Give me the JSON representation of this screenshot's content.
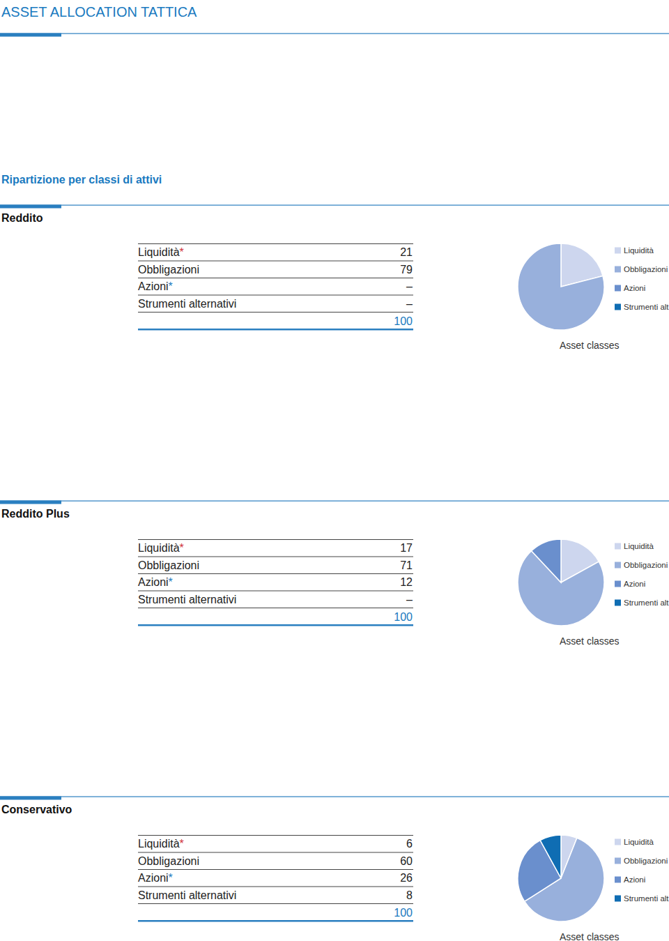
{
  "header": {
    "title": "ASSET ALLOCATION TATTICA",
    "subtitle": "Ripartizione per classi di attivi"
  },
  "tables": [
    {
      "rows": [
        {
          "label": "Liquidità",
          "note": "*",
          "note_color": "#d0313a",
          "value": 21
        },
        {
          "label": "Obbligazioni",
          "value": 79
        },
        {
          "label": "Azioni",
          "note": "*",
          "note_color": "#1a7ac0",
          "value": "–"
        },
        {
          "label": "Strumenti alternativi",
          "value": "–"
        }
      ],
      "total": 100
    },
    {
      "rows": [
        {
          "label": "Liquidità",
          "note": "*",
          "note_color": "#d0313a",
          "value": 17
        },
        {
          "label": "Obbligazioni",
          "value": 71
        },
        {
          "label": "Azioni",
          "note": "*",
          "note_color": "#1a7ac0",
          "value": 12
        },
        {
          "label": "Strumenti alternativi",
          "value": "–"
        }
      ],
      "total": 100
    },
    {
      "rows": [
        {
          "label": "Liquidità",
          "note": "*",
          "note_color": "#d0313a",
          "value": 6
        },
        {
          "label": "Obbligazioni",
          "value": 60
        },
        {
          "label": "Azioni",
          "note": "*",
          "note_color": "#1a7ac0",
          "value": 26
        },
        {
          "label": "Strumenti alternativi",
          "value": 8
        }
      ],
      "total": 100
    }
  ],
  "chart_data": [
    {
      "type": "pie",
      "title": "Reddito",
      "categories": [
        "Liquidità",
        "Obbligazioni",
        "Azioni",
        "Strumenti alt."
      ],
      "values": [
        21,
        79,
        0,
        0
      ],
      "colors": [
        "#cdd6ee",
        "#98b0dc",
        "#6a8fcd",
        "#0f6db3"
      ],
      "annotations": [
        "Asset classes"
      ],
      "legend": "right"
    },
    {
      "type": "pie",
      "title": "Reddito Plus",
      "categories": [
        "Liquidità",
        "Obbligazioni",
        "Azioni",
        "Strumenti alt."
      ],
      "values": [
        17,
        71,
        12,
        0
      ],
      "colors": [
        "#cdd6ee",
        "#98b0dc",
        "#6a8fcd",
        "#0f6db3"
      ],
      "annotations": [
        "Asset classes"
      ],
      "legend": "right"
    },
    {
      "type": "pie",
      "title": "Conservativo",
      "categories": [
        "Liquidità",
        "Obbligazioni",
        "Azioni",
        "Strumenti alt."
      ],
      "values": [
        6,
        60,
        26,
        8
      ],
      "colors": [
        "#cdd6ee",
        "#98b0dc",
        "#6a8fcd",
        "#0f6db3"
      ],
      "annotations": [
        "Asset classes"
      ],
      "legend": "right"
    }
  ]
}
